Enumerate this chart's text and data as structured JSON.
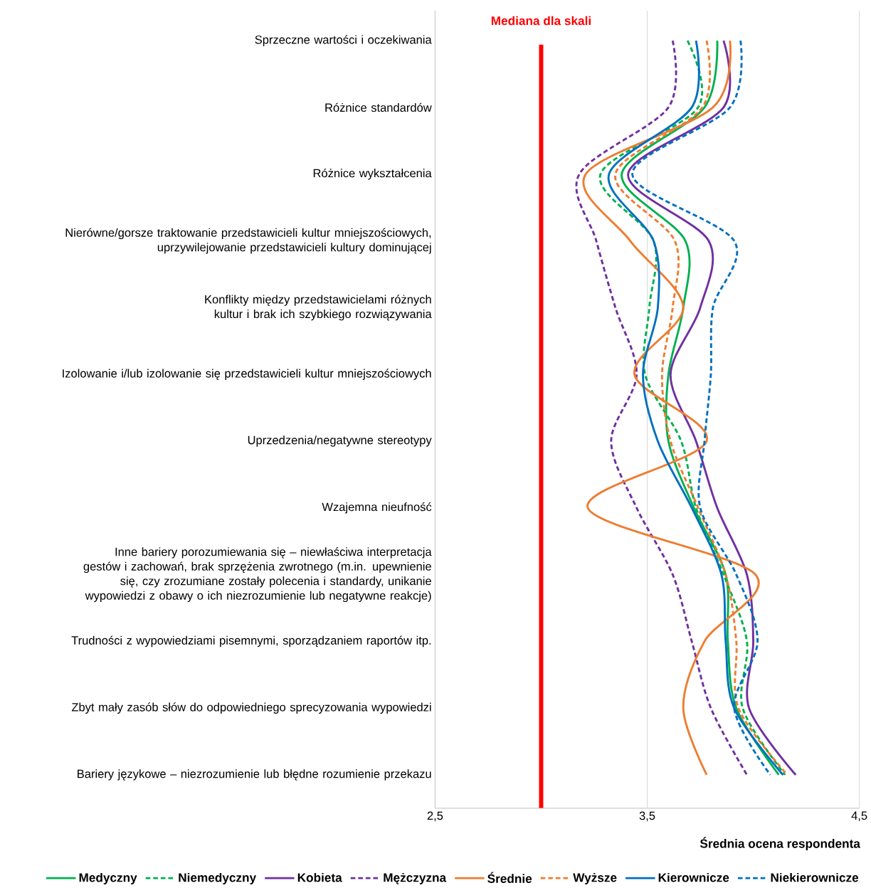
{
  "chart_data": {
    "type": "line",
    "orientation": "horizontal",
    "xlabel": "Średnia ocena respondenta",
    "categories": [
      "Sprzeczne wartości i oczekiwania",
      "Różnice standardów",
      "Różnice wykształcenia",
      "Nierówne/gorsze traktowanie przedstawicieli kultur mniejszościowych, uprzywilejowanie przedstawicieli kultury dominującej",
      "Konflikty między przedstawicielami różnych kultur i brak ich szybkiego rozwiązywania",
      "Izolowanie i/lub izolowanie się przedstawicieli kultur mniejszościowych",
      "Uprzedzenia/negatywne stereotypy",
      "Wzajemna nieufność",
      "Inne bariery porozumiewania się  –  niewłaściwa interpretacja gestów i zachowań, brak sprzężenia zwrotnego (m.in. upewnienie się, czy zrozumiane zostały polecenia i standardy, unikanie wypowiedzi z obawy o ich niezrozumienie lub  negatywne reakcje)",
      "Trudności z wypowiedziami pisemnymi, sporządzaniem raportów itp.",
      "Zbyt mały zasób słów do odpowiedniego sprecyzowania wypowiedzi",
      "Bariery językowe – niezrozumienie lub błędne rozumienie przekazu"
    ],
    "xlim": [
      2.5,
      4.5
    ],
    "xticks": [
      {
        "value": 2.5,
        "label": "2,5"
      },
      {
        "value": 3.5,
        "label": "3,5"
      },
      {
        "value": 4.5,
        "label": "4,5"
      }
    ],
    "grid": "x",
    "legend": "bottom",
    "ref_lines": [
      {
        "axis": "x",
        "value": 3,
        "label": "Mediana dla skali",
        "color": "#ff0000"
      }
    ],
    "series": [
      {
        "name": "Medyczny",
        "color": "#00b050",
        "line_style": "solid",
        "values": [
          3.83,
          3.77,
          3.38,
          3.68,
          3.67,
          3.6,
          3.6,
          3.72,
          3.87,
          3.88,
          3.92,
          4.12
        ]
      },
      {
        "name": "Niemedyczny",
        "color": "#00b050",
        "line_style": "dashed",
        "values": [
          3.69,
          3.74,
          3.28,
          3.53,
          3.51,
          3.49,
          3.66,
          3.73,
          3.86,
          3.97,
          3.95,
          4.15
        ]
      },
      {
        "name": "Kobieta",
        "color": "#7030a0",
        "line_style": "solid",
        "values": [
          3.86,
          3.86,
          3.41,
          3.79,
          3.75,
          3.61,
          3.73,
          3.83,
          3.97,
          4.0,
          3.98,
          4.2
        ]
      },
      {
        "name": "Mężczyzna",
        "color": "#7030a0",
        "line_style": "dashed",
        "values": [
          3.62,
          3.6,
          3.18,
          3.26,
          3.35,
          3.45,
          3.33,
          3.45,
          3.62,
          3.71,
          3.8,
          3.97
        ]
      },
      {
        "name": "Średnie",
        "color": "#ed7d31",
        "line_style": "solid",
        "values": [
          3.89,
          3.81,
          3.21,
          3.42,
          3.67,
          3.44,
          3.78,
          3.22,
          4.01,
          3.77,
          3.67,
          3.78
        ]
      },
      {
        "name": "Wyższe",
        "color": "#ed7d31",
        "line_style": "dashed",
        "values": [
          3.78,
          3.76,
          3.35,
          3.63,
          3.62,
          3.57,
          3.61,
          3.74,
          3.87,
          3.92,
          3.93,
          4.16
        ]
      },
      {
        "name": "Kierownicze",
        "color": "#0070c0",
        "line_style": "solid",
        "values": [
          3.73,
          3.71,
          3.32,
          3.53,
          3.55,
          3.48,
          3.55,
          3.71,
          3.85,
          3.87,
          3.91,
          4.14
        ]
      },
      {
        "name": "Niekierownicze",
        "color": "#0070c0",
        "line_style": "dashed",
        "values": [
          3.94,
          3.89,
          3.43,
          3.91,
          3.81,
          3.8,
          3.77,
          3.75,
          3.92,
          4.02,
          3.91,
          4.08
        ]
      }
    ]
  }
}
